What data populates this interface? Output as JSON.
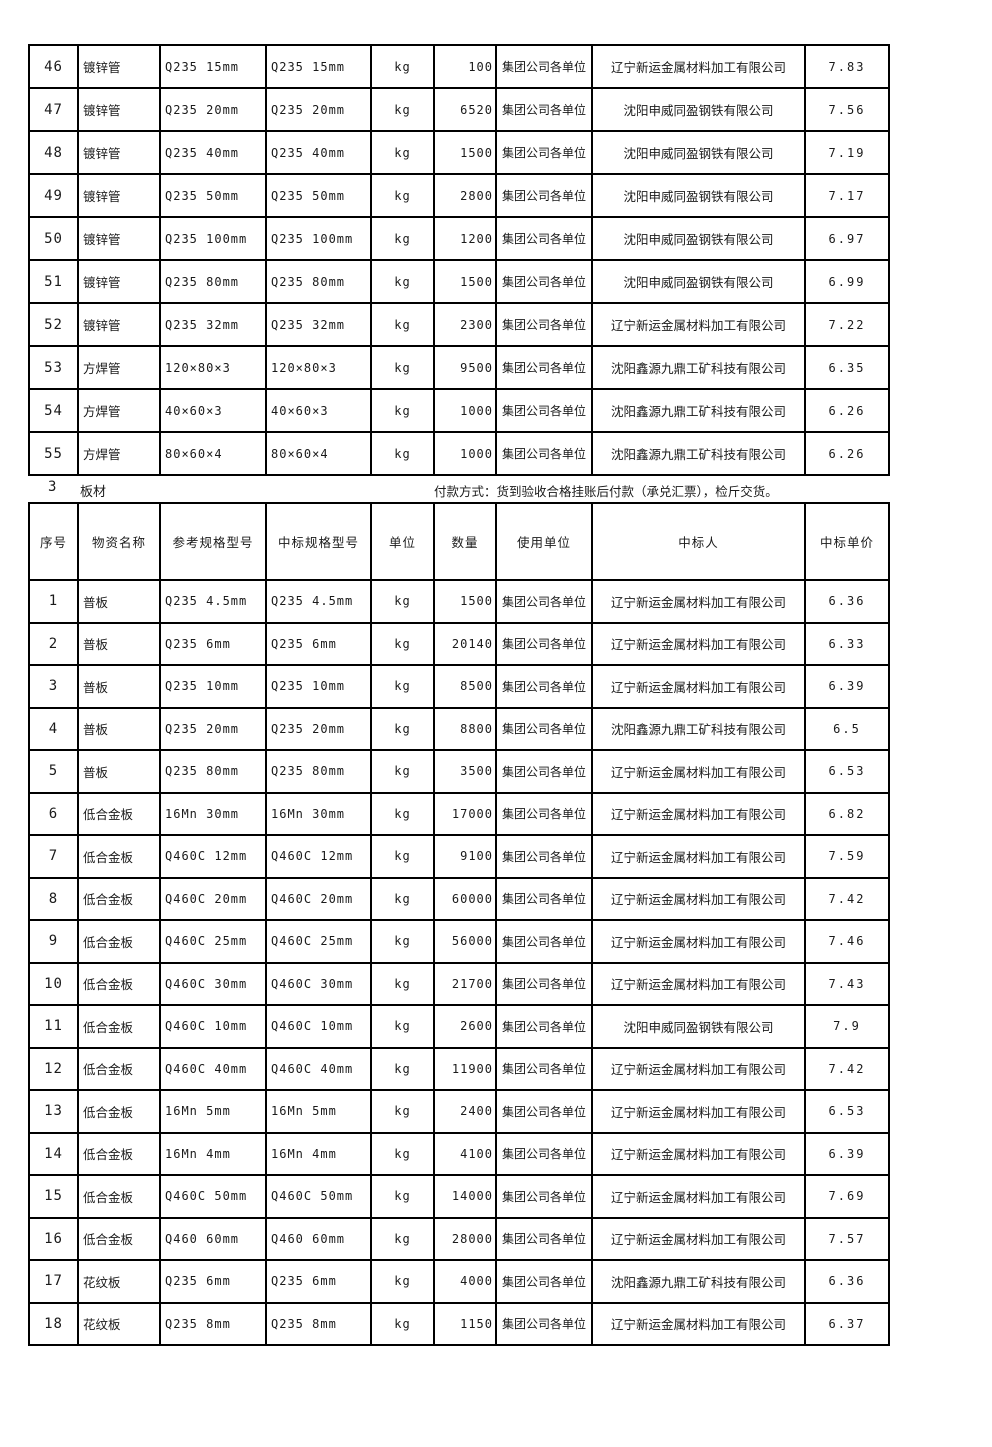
{
  "section": {
    "number": "3",
    "title": "板材",
    "payment_note": "付款方式：货到验收合格挂账后付款（承兑汇票），检斤交货。"
  },
  "table_pipes": {
    "rows": [
      {
        "no": "46",
        "name": "镀锌管",
        "ref": "Q235 15mm",
        "bid": "Q235 15mm",
        "unit": "kg",
        "qty": "100",
        "user": "集团公司各单位",
        "bidder": "辽宁新运金属材料加工有限公司",
        "price": "7.83"
      },
      {
        "no": "47",
        "name": "镀锌管",
        "ref": "Q235 20mm",
        "bid": "Q235 20mm",
        "unit": "kg",
        "qty": "6520",
        "user": "集团公司各单位",
        "bidder": "沈阳申威同盈钢铁有限公司",
        "price": "7.56"
      },
      {
        "no": "48",
        "name": "镀锌管",
        "ref": "Q235 40mm",
        "bid": "Q235 40mm",
        "unit": "kg",
        "qty": "1500",
        "user": "集团公司各单位",
        "bidder": "沈阳申威同盈钢铁有限公司",
        "price": "7.19"
      },
      {
        "no": "49",
        "name": "镀锌管",
        "ref": "Q235 50mm",
        "bid": "Q235 50mm",
        "unit": "kg",
        "qty": "2800",
        "user": "集团公司各单位",
        "bidder": "沈阳申威同盈钢铁有限公司",
        "price": "7.17"
      },
      {
        "no": "50",
        "name": "镀锌管",
        "ref": "Q235 100mm",
        "bid": "Q235 100mm",
        "unit": "kg",
        "qty": "1200",
        "user": "集团公司各单位",
        "bidder": "沈阳申威同盈钢铁有限公司",
        "price": "6.97"
      },
      {
        "no": "51",
        "name": "镀锌管",
        "ref": "Q235 80mm",
        "bid": "Q235 80mm",
        "unit": "kg",
        "qty": "1500",
        "user": "集团公司各单位",
        "bidder": "沈阳申威同盈钢铁有限公司",
        "price": "6.99"
      },
      {
        "no": "52",
        "name": "镀锌管",
        "ref": "Q235 32mm",
        "bid": "Q235 32mm",
        "unit": "kg",
        "qty": "2300",
        "user": "集团公司各单位",
        "bidder": "辽宁新运金属材料加工有限公司",
        "price": "7.22"
      },
      {
        "no": "53",
        "name": "方焊管",
        "ref": "120×80×3",
        "bid": "120×80×3",
        "unit": "kg",
        "qty": "9500",
        "user": "集团公司各单位",
        "bidder": "沈阳鑫源九鼎工矿科技有限公司",
        "price": "6.35"
      },
      {
        "no": "54",
        "name": "方焊管",
        "ref": "40×60×3",
        "bid": "40×60×3",
        "unit": "kg",
        "qty": "1000",
        "user": "集团公司各单位",
        "bidder": "沈阳鑫源九鼎工矿科技有限公司",
        "price": "6.26"
      },
      {
        "no": "55",
        "name": "方焊管",
        "ref": "80×60×4",
        "bid": "80×60×4",
        "unit": "kg",
        "qty": "1000",
        "user": "集团公司各单位",
        "bidder": "沈阳鑫源九鼎工矿科技有限公司",
        "price": "6.26"
      }
    ]
  },
  "table_plates": {
    "headers": [
      "序号",
      "物资名称",
      "参考规格型号",
      "中标规格型号",
      "单位",
      "数量",
      "使用单位",
      "中标人",
      "中标单价"
    ],
    "rows": [
      {
        "no": "1",
        "name": "普板",
        "ref": "Q235 4.5mm",
        "bid": "Q235 4.5mm",
        "unit": "kg",
        "qty": "1500",
        "user": "集团公司各单位",
        "bidder": "辽宁新运金属材料加工有限公司",
        "price": "6.36"
      },
      {
        "no": "2",
        "name": "普板",
        "ref": "Q235 6mm",
        "bid": "Q235 6mm",
        "unit": "kg",
        "qty": "20140",
        "user": "集团公司各单位",
        "bidder": "辽宁新运金属材料加工有限公司",
        "price": "6.33"
      },
      {
        "no": "3",
        "name": "普板",
        "ref": "Q235 10mm",
        "bid": "Q235 10mm",
        "unit": "kg",
        "qty": "8500",
        "user": "集团公司各单位",
        "bidder": "辽宁新运金属材料加工有限公司",
        "price": "6.39"
      },
      {
        "no": "4",
        "name": "普板",
        "ref": "Q235 20mm",
        "bid": "Q235 20mm",
        "unit": "kg",
        "qty": "8800",
        "user": "集团公司各单位",
        "bidder": "沈阳鑫源九鼎工矿科技有限公司",
        "price": "6.5"
      },
      {
        "no": "5",
        "name": "普板",
        "ref": "Q235 80mm",
        "bid": "Q235 80mm",
        "unit": "kg",
        "qty": "3500",
        "user": "集团公司各单位",
        "bidder": "辽宁新运金属材料加工有限公司",
        "price": "6.53"
      },
      {
        "no": "6",
        "name": "低合金板",
        "ref": "16Mn 30mm",
        "bid": "16Mn 30mm",
        "unit": "kg",
        "qty": "17000",
        "user": "集团公司各单位",
        "bidder": "辽宁新运金属材料加工有限公司",
        "price": "6.82"
      },
      {
        "no": "7",
        "name": "低合金板",
        "ref": "Q460C 12mm",
        "bid": "Q460C 12mm",
        "unit": "kg",
        "qty": "9100",
        "user": "集团公司各单位",
        "bidder": "辽宁新运金属材料加工有限公司",
        "price": "7.59"
      },
      {
        "no": "8",
        "name": "低合金板",
        "ref": "Q460C 20mm",
        "bid": "Q460C 20mm",
        "unit": "kg",
        "qty": "60000",
        "user": "集团公司各单位",
        "bidder": "辽宁新运金属材料加工有限公司",
        "price": "7.42"
      },
      {
        "no": "9",
        "name": "低合金板",
        "ref": "Q460C 25mm",
        "bid": "Q460C 25mm",
        "unit": "kg",
        "qty": "56000",
        "user": "集团公司各单位",
        "bidder": "辽宁新运金属材料加工有限公司",
        "price": "7.46"
      },
      {
        "no": "10",
        "name": "低合金板",
        "ref": "Q460C 30mm",
        "bid": "Q460C 30mm",
        "unit": "kg",
        "qty": "21700",
        "user": "集团公司各单位",
        "bidder": "辽宁新运金属材料加工有限公司",
        "price": "7.43"
      },
      {
        "no": "11",
        "name": "低合金板",
        "ref": "Q460C 10mm",
        "bid": "Q460C 10mm",
        "unit": "kg",
        "qty": "2600",
        "user": "集团公司各单位",
        "bidder": "沈阳申威同盈钢铁有限公司",
        "price": "7.9"
      },
      {
        "no": "12",
        "name": "低合金板",
        "ref": "Q460C 40mm",
        "bid": "Q460C 40mm",
        "unit": "kg",
        "qty": "11900",
        "user": "集团公司各单位",
        "bidder": "辽宁新运金属材料加工有限公司",
        "price": "7.42"
      },
      {
        "no": "13",
        "name": "低合金板",
        "ref": "16Mn 5mm",
        "bid": "16Mn 5mm",
        "unit": "kg",
        "qty": "2400",
        "user": "集团公司各单位",
        "bidder": "辽宁新运金属材料加工有限公司",
        "price": "6.53"
      },
      {
        "no": "14",
        "name": "低合金板",
        "ref": "16Mn 4mm",
        "bid": "16Mn 4mm",
        "unit": "kg",
        "qty": "4100",
        "user": "集团公司各单位",
        "bidder": "辽宁新运金属材料加工有限公司",
        "price": "6.39"
      },
      {
        "no": "15",
        "name": "低合金板",
        "ref": "Q460C 50mm",
        "bid": "Q460C 50mm",
        "unit": "kg",
        "qty": "14000",
        "user": "集团公司各单位",
        "bidder": "辽宁新运金属材料加工有限公司",
        "price": "7.69"
      },
      {
        "no": "16",
        "name": "低合金板",
        "ref": "Q460 60mm",
        "bid": "Q460 60mm",
        "unit": "kg",
        "qty": "28000",
        "user": "集团公司各单位",
        "bidder": "辽宁新运金属材料加工有限公司",
        "price": "7.57"
      },
      {
        "no": "17",
        "name": "花纹板",
        "ref": "Q235 6mm",
        "bid": "Q235 6mm",
        "unit": "kg",
        "qty": "4000",
        "user": "集团公司各单位",
        "bidder": "沈阳鑫源九鼎工矿科技有限公司",
        "price": "6.36"
      },
      {
        "no": "18",
        "name": "花纹板",
        "ref": "Q235 8mm",
        "bid": "Q235 8mm",
        "unit": "kg",
        "qty": "1150",
        "user": "集团公司各单位",
        "bidder": "辽宁新运金属材料加工有限公司",
        "price": "6.37"
      }
    ]
  }
}
